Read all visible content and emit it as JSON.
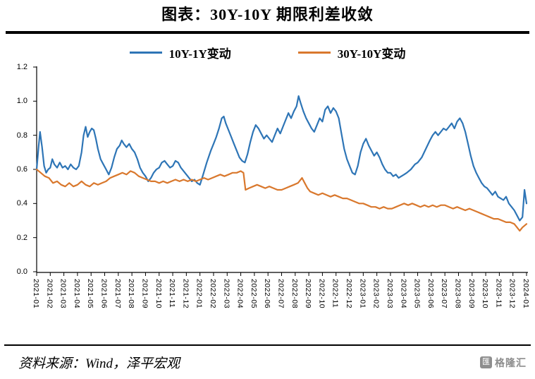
{
  "page": {
    "title": "图表：30Y-10Y 期限利差收敛",
    "source_note": "资料来源：Wind，泽平宏观",
    "logo_text": "格隆汇",
    "logo_icon_glyph": "匯"
  },
  "chart_data": {
    "type": "line",
    "title": "图表：30Y-10Y 期限利差收敛",
    "grid": false,
    "legend_position": "top",
    "ylim": [
      0,
      1.2
    ],
    "y_ticks": [
      "0.0",
      "0.2",
      "0.4",
      "0.6",
      "0.8",
      "1.0",
      "1.2"
    ],
    "xlim": [
      0,
      36
    ],
    "x_unit": "month index, 0 = 2021-01, 36 = 2024-01",
    "x_tick_labels": [
      "2021-01",
      "2021-02",
      "2021-03",
      "2021-04",
      "2021-05",
      "2021-06",
      "2021-07",
      "2021-08",
      "2021-09",
      "2021-10",
      "2021-11",
      "2021-12",
      "2022-01",
      "2022-02",
      "2022-03",
      "2022-04",
      "2022-05",
      "2022-06",
      "2022-07",
      "2022-08",
      "2022-09",
      "2022-10",
      "2022-11",
      "2022-12",
      "2023-01",
      "2023-02",
      "2023-03",
      "2023-04",
      "2023-05",
      "2023-06",
      "2023-07",
      "2023-08",
      "2023-09",
      "2023-10",
      "2023-11",
      "2023-12",
      "2024-01"
    ],
    "series": [
      {
        "name": "10Y-1Y变动",
        "color": "#2e75b6",
        "points": [
          [
            0,
            0.6
          ],
          [
            0.15,
            0.74
          ],
          [
            0.25,
            0.82
          ],
          [
            0.4,
            0.73
          ],
          [
            0.55,
            0.62
          ],
          [
            0.7,
            0.58
          ],
          [
            0.85,
            0.6
          ],
          [
            1.0,
            0.61
          ],
          [
            1.15,
            0.66
          ],
          [
            1.3,
            0.63
          ],
          [
            1.5,
            0.61
          ],
          [
            1.7,
            0.64
          ],
          [
            1.9,
            0.61
          ],
          [
            2.1,
            0.62
          ],
          [
            2.3,
            0.6
          ],
          [
            2.5,
            0.63
          ],
          [
            2.7,
            0.61
          ],
          [
            2.9,
            0.6
          ],
          [
            3.1,
            0.62
          ],
          [
            3.3,
            0.7
          ],
          [
            3.45,
            0.8
          ],
          [
            3.6,
            0.85
          ],
          [
            3.75,
            0.79
          ],
          [
            3.9,
            0.82
          ],
          [
            4.05,
            0.84
          ],
          [
            4.2,
            0.83
          ],
          [
            4.35,
            0.78
          ],
          [
            4.5,
            0.72
          ],
          [
            4.7,
            0.66
          ],
          [
            4.9,
            0.63
          ],
          [
            5.1,
            0.6
          ],
          [
            5.3,
            0.57
          ],
          [
            5.5,
            0.61
          ],
          [
            5.7,
            0.67
          ],
          [
            5.9,
            0.72
          ],
          [
            6.1,
            0.74
          ],
          [
            6.25,
            0.77
          ],
          [
            6.4,
            0.75
          ],
          [
            6.6,
            0.73
          ],
          [
            6.8,
            0.75
          ],
          [
            7.0,
            0.72
          ],
          [
            7.2,
            0.7
          ],
          [
            7.4,
            0.66
          ],
          [
            7.6,
            0.61
          ],
          [
            7.8,
            0.58
          ],
          [
            8.0,
            0.56
          ],
          [
            8.2,
            0.53
          ],
          [
            8.4,
            0.55
          ],
          [
            8.6,
            0.58
          ],
          [
            8.8,
            0.6
          ],
          [
            9.0,
            0.61
          ],
          [
            9.2,
            0.64
          ],
          [
            9.4,
            0.65
          ],
          [
            9.6,
            0.63
          ],
          [
            9.8,
            0.61
          ],
          [
            10.0,
            0.62
          ],
          [
            10.2,
            0.65
          ],
          [
            10.4,
            0.64
          ],
          [
            10.6,
            0.61
          ],
          [
            10.8,
            0.59
          ],
          [
            11.0,
            0.57
          ],
          [
            11.2,
            0.55
          ],
          [
            11.4,
            0.53
          ],
          [
            11.6,
            0.54
          ],
          [
            11.8,
            0.52
          ],
          [
            12.0,
            0.51
          ],
          [
            12.2,
            0.56
          ],
          [
            12.5,
            0.64
          ],
          [
            12.8,
            0.71
          ],
          [
            13.0,
            0.75
          ],
          [
            13.2,
            0.79
          ],
          [
            13.4,
            0.84
          ],
          [
            13.6,
            0.9
          ],
          [
            13.75,
            0.91
          ],
          [
            13.9,
            0.87
          ],
          [
            14.1,
            0.83
          ],
          [
            14.3,
            0.79
          ],
          [
            14.5,
            0.75
          ],
          [
            14.7,
            0.71
          ],
          [
            14.9,
            0.67
          ],
          [
            15.1,
            0.65
          ],
          [
            15.3,
            0.64
          ],
          [
            15.5,
            0.69
          ],
          [
            15.7,
            0.76
          ],
          [
            15.9,
            0.82
          ],
          [
            16.1,
            0.86
          ],
          [
            16.3,
            0.84
          ],
          [
            16.5,
            0.81
          ],
          [
            16.7,
            0.78
          ],
          [
            16.9,
            0.8
          ],
          [
            17.1,
            0.78
          ],
          [
            17.3,
            0.76
          ],
          [
            17.5,
            0.8
          ],
          [
            17.7,
            0.84
          ],
          [
            17.9,
            0.81
          ],
          [
            18.1,
            0.85
          ],
          [
            18.3,
            0.89
          ],
          [
            18.5,
            0.93
          ],
          [
            18.7,
            0.9
          ],
          [
            18.9,
            0.94
          ],
          [
            19.1,
            0.97
          ],
          [
            19.25,
            1.03
          ],
          [
            19.4,
            0.99
          ],
          [
            19.6,
            0.94
          ],
          [
            19.8,
            0.9
          ],
          [
            20.0,
            0.87
          ],
          [
            20.2,
            0.84
          ],
          [
            20.4,
            0.82
          ],
          [
            20.6,
            0.86
          ],
          [
            20.8,
            0.9
          ],
          [
            21.0,
            0.88
          ],
          [
            21.2,
            0.95
          ],
          [
            21.4,
            0.97
          ],
          [
            21.6,
            0.93
          ],
          [
            21.8,
            0.96
          ],
          [
            22.0,
            0.94
          ],
          [
            22.2,
            0.9
          ],
          [
            22.4,
            0.81
          ],
          [
            22.6,
            0.72
          ],
          [
            22.8,
            0.66
          ],
          [
            23.0,
            0.62
          ],
          [
            23.2,
            0.58
          ],
          [
            23.4,
            0.57
          ],
          [
            23.6,
            0.62
          ],
          [
            23.8,
            0.7
          ],
          [
            24.0,
            0.75
          ],
          [
            24.2,
            0.78
          ],
          [
            24.4,
            0.74
          ],
          [
            24.6,
            0.71
          ],
          [
            24.8,
            0.68
          ],
          [
            25.0,
            0.7
          ],
          [
            25.2,
            0.67
          ],
          [
            25.4,
            0.63
          ],
          [
            25.6,
            0.6
          ],
          [
            25.8,
            0.58
          ],
          [
            26.0,
            0.58
          ],
          [
            26.2,
            0.56
          ],
          [
            26.4,
            0.57
          ],
          [
            26.6,
            0.55
          ],
          [
            26.8,
            0.56
          ],
          [
            27.0,
            0.57
          ],
          [
            27.2,
            0.58
          ],
          [
            27.5,
            0.6
          ],
          [
            27.8,
            0.63
          ],
          [
            28.0,
            0.64
          ],
          [
            28.3,
            0.67
          ],
          [
            28.6,
            0.72
          ],
          [
            28.9,
            0.77
          ],
          [
            29.1,
            0.8
          ],
          [
            29.3,
            0.82
          ],
          [
            29.5,
            0.8
          ],
          [
            29.7,
            0.82
          ],
          [
            29.9,
            0.84
          ],
          [
            30.1,
            0.83
          ],
          [
            30.3,
            0.85
          ],
          [
            30.5,
            0.87
          ],
          [
            30.7,
            0.84
          ],
          [
            30.9,
            0.88
          ],
          [
            31.1,
            0.9
          ],
          [
            31.3,
            0.87
          ],
          [
            31.5,
            0.82
          ],
          [
            31.7,
            0.75
          ],
          [
            31.9,
            0.68
          ],
          [
            32.1,
            0.62
          ],
          [
            32.3,
            0.58
          ],
          [
            32.5,
            0.55
          ],
          [
            32.7,
            0.52
          ],
          [
            32.9,
            0.5
          ],
          [
            33.1,
            0.49
          ],
          [
            33.3,
            0.47
          ],
          [
            33.5,
            0.45
          ],
          [
            33.7,
            0.47
          ],
          [
            33.9,
            0.44
          ],
          [
            34.1,
            0.43
          ],
          [
            34.3,
            0.42
          ],
          [
            34.5,
            0.44
          ],
          [
            34.7,
            0.4
          ],
          [
            34.9,
            0.38
          ],
          [
            35.1,
            0.36
          ],
          [
            35.3,
            0.33
          ],
          [
            35.5,
            0.3
          ],
          [
            35.7,
            0.32
          ],
          [
            35.85,
            0.48
          ],
          [
            36.0,
            0.4
          ]
        ]
      },
      {
        "name": "30Y-10Y变动",
        "color": "#d9782d",
        "points": [
          [
            0,
            0.6
          ],
          [
            0.3,
            0.58
          ],
          [
            0.6,
            0.56
          ],
          [
            0.9,
            0.55
          ],
          [
            1.2,
            0.52
          ],
          [
            1.5,
            0.53
          ],
          [
            1.8,
            0.51
          ],
          [
            2.1,
            0.5
          ],
          [
            2.4,
            0.52
          ],
          [
            2.7,
            0.5
          ],
          [
            3.0,
            0.51
          ],
          [
            3.3,
            0.53
          ],
          [
            3.6,
            0.51
          ],
          [
            3.9,
            0.5
          ],
          [
            4.2,
            0.52
          ],
          [
            4.5,
            0.51
          ],
          [
            4.8,
            0.52
          ],
          [
            5.1,
            0.53
          ],
          [
            5.4,
            0.55
          ],
          [
            5.7,
            0.56
          ],
          [
            6.0,
            0.57
          ],
          [
            6.3,
            0.58
          ],
          [
            6.6,
            0.57
          ],
          [
            6.9,
            0.59
          ],
          [
            7.2,
            0.58
          ],
          [
            7.5,
            0.56
          ],
          [
            7.8,
            0.55
          ],
          [
            8.1,
            0.54
          ],
          [
            8.4,
            0.53
          ],
          [
            8.7,
            0.53
          ],
          [
            9.0,
            0.52
          ],
          [
            9.3,
            0.53
          ],
          [
            9.6,
            0.52
          ],
          [
            9.9,
            0.53
          ],
          [
            10.2,
            0.54
          ],
          [
            10.5,
            0.53
          ],
          [
            10.8,
            0.54
          ],
          [
            11.1,
            0.53
          ],
          [
            11.4,
            0.54
          ],
          [
            11.7,
            0.53
          ],
          [
            12.0,
            0.54
          ],
          [
            12.3,
            0.55
          ],
          [
            12.6,
            0.54
          ],
          [
            12.9,
            0.55
          ],
          [
            13.2,
            0.56
          ],
          [
            13.5,
            0.57
          ],
          [
            13.8,
            0.56
          ],
          [
            14.1,
            0.57
          ],
          [
            14.4,
            0.58
          ],
          [
            14.7,
            0.58
          ],
          [
            15.0,
            0.59
          ],
          [
            15.2,
            0.58
          ],
          [
            15.35,
            0.48
          ],
          [
            15.6,
            0.49
          ],
          [
            15.9,
            0.5
          ],
          [
            16.2,
            0.51
          ],
          [
            16.5,
            0.5
          ],
          [
            16.8,
            0.49
          ],
          [
            17.1,
            0.5
          ],
          [
            17.4,
            0.49
          ],
          [
            17.7,
            0.48
          ],
          [
            18.0,
            0.48
          ],
          [
            18.3,
            0.49
          ],
          [
            18.6,
            0.5
          ],
          [
            18.9,
            0.51
          ],
          [
            19.2,
            0.52
          ],
          [
            19.5,
            0.55
          ],
          [
            19.7,
            0.52
          ],
          [
            19.9,
            0.49
          ],
          [
            20.1,
            0.47
          ],
          [
            20.4,
            0.46
          ],
          [
            20.7,
            0.45
          ],
          [
            21.0,
            0.46
          ],
          [
            21.3,
            0.45
          ],
          [
            21.6,
            0.44
          ],
          [
            21.9,
            0.45
          ],
          [
            22.2,
            0.44
          ],
          [
            22.5,
            0.43
          ],
          [
            22.8,
            0.43
          ],
          [
            23.1,
            0.42
          ],
          [
            23.4,
            0.41
          ],
          [
            23.7,
            0.4
          ],
          [
            24.0,
            0.4
          ],
          [
            24.3,
            0.39
          ],
          [
            24.6,
            0.38
          ],
          [
            24.9,
            0.38
          ],
          [
            25.2,
            0.37
          ],
          [
            25.5,
            0.38
          ],
          [
            25.8,
            0.37
          ],
          [
            26.1,
            0.37
          ],
          [
            26.4,
            0.38
          ],
          [
            26.7,
            0.39
          ],
          [
            27.0,
            0.4
          ],
          [
            27.3,
            0.39
          ],
          [
            27.6,
            0.4
          ],
          [
            27.9,
            0.39
          ],
          [
            28.2,
            0.38
          ],
          [
            28.5,
            0.39
          ],
          [
            28.8,
            0.38
          ],
          [
            29.1,
            0.39
          ],
          [
            29.4,
            0.38
          ],
          [
            29.7,
            0.39
          ],
          [
            30.0,
            0.39
          ],
          [
            30.3,
            0.38
          ],
          [
            30.6,
            0.37
          ],
          [
            30.9,
            0.38
          ],
          [
            31.2,
            0.37
          ],
          [
            31.5,
            0.36
          ],
          [
            31.8,
            0.37
          ],
          [
            32.1,
            0.36
          ],
          [
            32.4,
            0.35
          ],
          [
            32.7,
            0.34
          ],
          [
            33.0,
            0.33
          ],
          [
            33.3,
            0.32
          ],
          [
            33.6,
            0.31
          ],
          [
            33.9,
            0.31
          ],
          [
            34.2,
            0.3
          ],
          [
            34.5,
            0.29
          ],
          [
            34.8,
            0.29
          ],
          [
            35.1,
            0.28
          ],
          [
            35.3,
            0.26
          ],
          [
            35.5,
            0.24
          ],
          [
            35.7,
            0.26
          ],
          [
            36.0,
            0.28
          ]
        ]
      }
    ]
  }
}
